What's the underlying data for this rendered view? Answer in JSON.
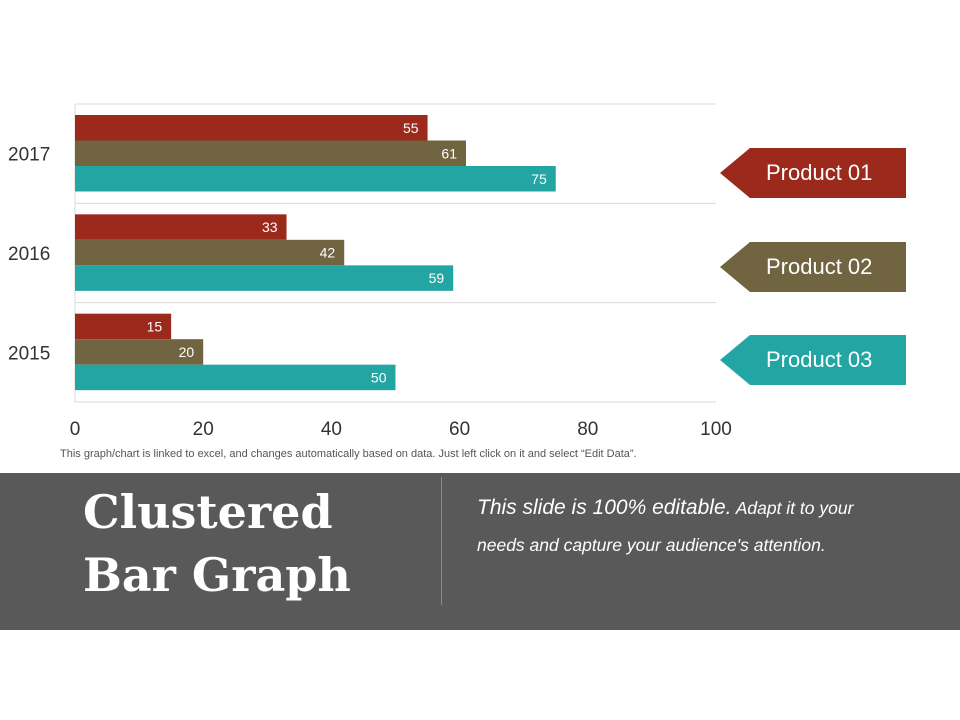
{
  "chart_data": {
    "type": "bar",
    "orientation": "horizontal",
    "categories": [
      "2017",
      "2016",
      "2015"
    ],
    "series": [
      {
        "name": "Product 01",
        "color": "#9b2a1d",
        "values": [
          55,
          33,
          15
        ]
      },
      {
        "name": "Product 02",
        "color": "#716440",
        "values": [
          61,
          42,
          20
        ]
      },
      {
        "name": "Product 03",
        "color": "#23a5a4",
        "values": [
          75,
          59,
          50
        ]
      }
    ],
    "xlim": [
      0,
      100
    ],
    "xticks": [
      "0",
      "20",
      "40",
      "60",
      "80",
      "100"
    ],
    "grid": true,
    "data_labels": true,
    "legend_position": "right"
  },
  "note": "This graph/chart is linked to excel, and changes automatically based on data. Just left click on it and select “Edit Data”.",
  "banner": {
    "title": "Clustered Bar Graph",
    "desc_lead": "This slide is 100% editable.",
    "desc_rest": " Adapt it to your needs and capture your audience's attention."
  },
  "colors": {
    "banner_bg": "#595959",
    "product_01": "#9b2a1d",
    "product_02": "#716440",
    "product_03": "#23a5a4"
  }
}
